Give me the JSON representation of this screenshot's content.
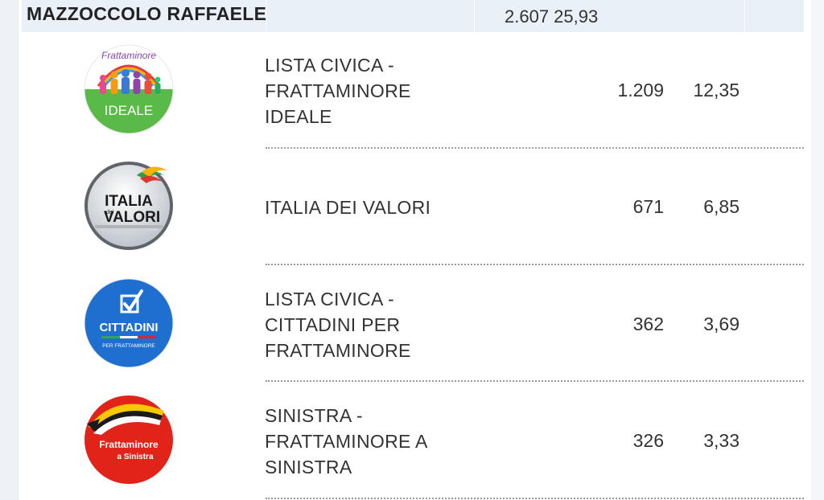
{
  "candidate": {
    "name": "MAZZOCCOLO RAFFAELE",
    "votes_pct": "2.607 25,93"
  },
  "lists": [
    {
      "name_lines": [
        "LISTA CIVICA -",
        "FRATTAMINORE",
        "IDEALE"
      ],
      "votes": "1.209",
      "pct": "12,35",
      "logo": {
        "icon": "frattaminore-ideale-logo",
        "top_text": "Frattaminore",
        "bottom_text": "IDEALE",
        "colors": [
          "#58b947",
          "#ffffff"
        ]
      }
    },
    {
      "name_lines": [
        "ITALIA DEI VALORI"
      ],
      "votes": "671",
      "pct": "6,85",
      "logo": {
        "icon": "italia-dei-valori-logo",
        "line1": "ITALIA",
        "small": "dei",
        "line2": "VALORI",
        "colors": [
          "#d9dde3",
          "#1a1a1a"
        ]
      }
    },
    {
      "name_lines": [
        "LISTA CIVICA -",
        "CITTADINI PER",
        "FRATTAMINORE"
      ],
      "votes": "362",
      "pct": "3,69",
      "logo": {
        "icon": "cittadini-logo",
        "main": "CITTADINI",
        "sub": "PER FRATTAMINORE",
        "colors": [
          "#1f6fd1",
          "#ffffff"
        ]
      }
    },
    {
      "name_lines": [
        "SINISTRA -",
        "FRATTAMINORE A",
        "SINISTRA"
      ],
      "votes": "326",
      "pct": "3,33",
      "logo": {
        "icon": "frattaminore-a-sinistra-logo",
        "line1": "Frattaminore",
        "line2": "a Sinistra",
        "colors": [
          "#e2231a",
          "#f6c800"
        ]
      }
    }
  ]
}
